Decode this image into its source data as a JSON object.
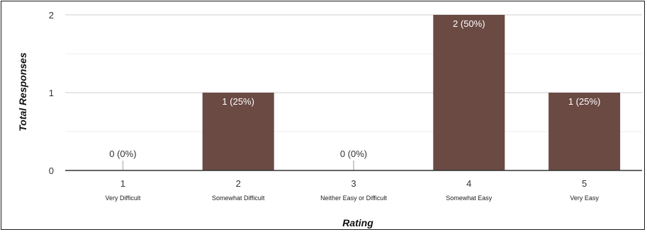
{
  "chart_data": {
    "type": "bar",
    "xlabel": "Rating",
    "ylabel": "Total Responses",
    "ylim": [
      0,
      2
    ],
    "yticks": [
      "0",
      "1",
      "2"
    ],
    "categories": [
      "1",
      "2",
      "3",
      "4",
      "5"
    ],
    "category_descriptions": [
      "Very Difficult",
      "Somewhat Difficult",
      "Neither Easy or Difficult",
      "Somewhat Easy",
      "Very Easy"
    ],
    "values": [
      0,
      1,
      0,
      2,
      1
    ],
    "data_labels": [
      "0 (0%)",
      "1 (25%)",
      "0 (0%)",
      "2 (50%)",
      "1 (25%)"
    ],
    "grid": true,
    "bar_color": "#6b4a44"
  }
}
